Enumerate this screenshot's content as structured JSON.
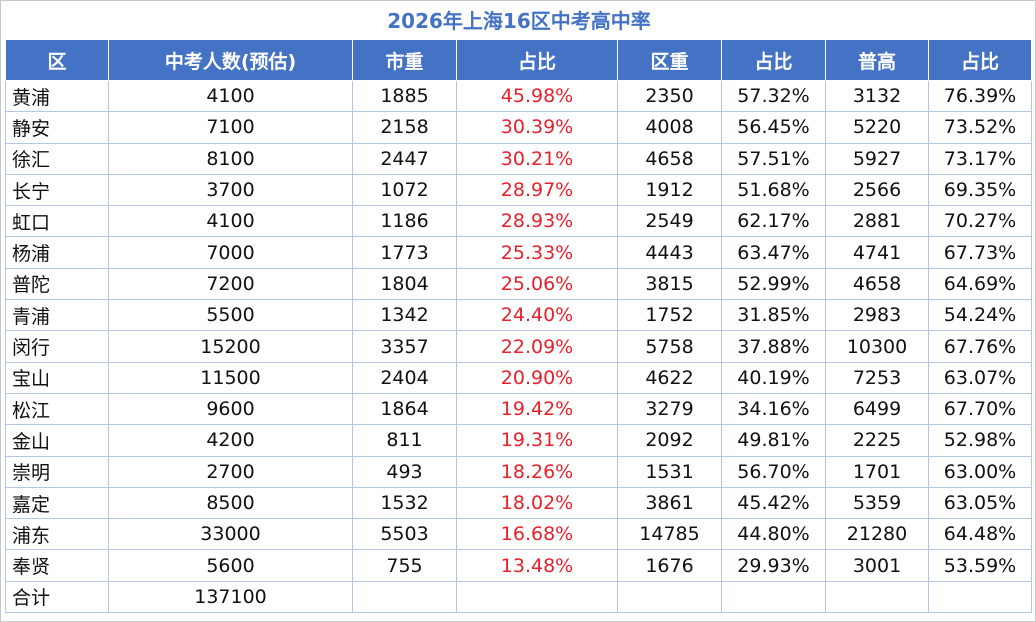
{
  "title": "2026年上海16区中考高中率",
  "columns": [
    "区",
    "中考人数(预估)",
    "市重",
    "占比",
    "区重",
    "占比",
    "普高",
    "占比"
  ],
  "rows": [
    [
      "黄浦",
      "4100",
      "1885",
      "45.98%",
      "2350",
      "57.32%",
      "3132",
      "76.39%"
    ],
    [
      "静安",
      "7100",
      "2158",
      "30.39%",
      "4008",
      "56.45%",
      "5220",
      "73.52%"
    ],
    [
      "徐汇",
      "8100",
      "2447",
      "30.21%",
      "4658",
      "57.51%",
      "5927",
      "73.17%"
    ],
    [
      "长宁",
      "3700",
      "1072",
      "28.97%",
      "1912",
      "51.68%",
      "2566",
      "69.35%"
    ],
    [
      "虹口",
      "4100",
      "1186",
      "28.93%",
      "2549",
      "62.17%",
      "2881",
      "70.27%"
    ],
    [
      "杨浦",
      "7000",
      "1773",
      "25.33%",
      "4443",
      "63.47%",
      "4741",
      "67.73%"
    ],
    [
      "普陀",
      "7200",
      "1804",
      "25.06%",
      "3815",
      "52.99%",
      "4658",
      "64.69%"
    ],
    [
      "青浦",
      "5500",
      "1342",
      "24.40%",
      "1752",
      "31.85%",
      "2983",
      "54.24%"
    ],
    [
      "闵行",
      "15200",
      "3357",
      "22.09%",
      "5758",
      "37.88%",
      "10300",
      "67.76%"
    ],
    [
      "宝山",
      "11500",
      "2404",
      "20.90%",
      "4622",
      "40.19%",
      "7253",
      "63.07%"
    ],
    [
      "松江",
      "9600",
      "1864",
      "19.42%",
      "3279",
      "34.16%",
      "6499",
      "67.70%"
    ],
    [
      "金山",
      "4200",
      "811",
      "19.31%",
      "2092",
      "49.81%",
      "2225",
      "52.98%"
    ],
    [
      "崇明",
      "2700",
      "493",
      "18.26%",
      "1531",
      "56.70%",
      "1701",
      "63.00%"
    ],
    [
      "嘉定",
      "8500",
      "1532",
      "18.02%",
      "3861",
      "45.42%",
      "5359",
      "63.05%"
    ],
    [
      "浦东",
      "33000",
      "5503",
      "16.68%",
      "14785",
      "44.80%",
      "21280",
      "64.48%"
    ],
    [
      "奉贤",
      "5600",
      "755",
      "13.48%",
      "1676",
      "29.93%",
      "3001",
      "53.59%"
    ]
  ],
  "total_row": [
    "合计",
    "137100",
    "",
    "",
    "",
    "",
    "",
    ""
  ],
  "colors": {
    "header_bg": "#4472c4",
    "header_text": "#ffffff",
    "title_text": "#4472c4",
    "highlight_red": "#e8202a",
    "grid": "#b4c6e7"
  }
}
